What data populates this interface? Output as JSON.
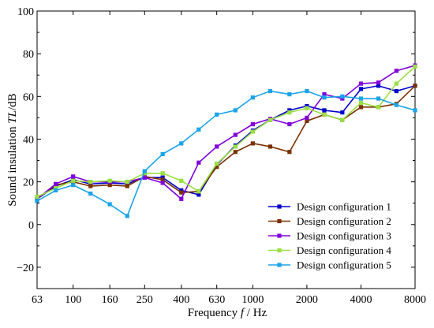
{
  "chart_data": {
    "type": "line",
    "xlabel_parts": [
      "Frequency ",
      "f",
      " / Hz"
    ],
    "ylabel_parts": [
      "Sound insulation ",
      "TL",
      "/dB"
    ],
    "x_scale": "log",
    "xlim": [
      63,
      8000
    ],
    "ylim": [
      -30,
      100
    ],
    "xticks": [
      63,
      100,
      160,
      250,
      400,
      630,
      1000,
      2000,
      4000,
      8000
    ],
    "yticks": [
      -20,
      0,
      20,
      40,
      60,
      80,
      100
    ],
    "grid": false,
    "legend_position": "bottom-right",
    "x": [
      63,
      80,
      100,
      125,
      160,
      200,
      250,
      315,
      400,
      500,
      630,
      800,
      1000,
      1250,
      1600,
      2000,
      2500,
      3150,
      4000,
      5000,
      6300,
      8000
    ],
    "series": [
      {
        "name": "Design configuration 1",
        "color": "#0000cc",
        "marker": "square",
        "values": [
          12,
          18,
          21,
          19,
          19.5,
          19,
          22,
          22,
          16,
          14,
          28,
          37,
          44,
          49,
          53.5,
          55.5,
          53.5,
          52.5,
          63.5,
          65,
          62.5,
          65
        ]
      },
      {
        "name": "Design configuration 2",
        "color": "#7b3000",
        "marker": "square",
        "values": [
          12,
          18.5,
          20,
          18,
          18.5,
          18,
          22.5,
          21,
          15,
          15.5,
          27,
          34,
          38,
          36.5,
          34,
          48.5,
          51.5,
          49,
          55,
          55,
          56.5,
          65
        ]
      },
      {
        "name": "Design configuration 3",
        "color": "#8000dd",
        "marker": "square",
        "values": [
          12,
          19,
          22.5,
          20,
          20,
          20,
          22,
          19.5,
          12,
          29,
          36.5,
          42,
          47,
          49.5,
          47,
          50,
          61,
          59,
          66,
          66.5,
          72,
          74.5
        ]
      },
      {
        "name": "Design configuration 4",
        "color": "#99e040",
        "marker": "square",
        "values": [
          13,
          17,
          20.5,
          20,
          20.5,
          20,
          24,
          24,
          20.5,
          15.5,
          28.5,
          36.5,
          43.5,
          49,
          52.5,
          54.5,
          51.5,
          49,
          57,
          55,
          66,
          74
        ]
      },
      {
        "name": "Design configuration 5",
        "color": "#1aa3e8",
        "marker": "square",
        "values": [
          11,
          16,
          18.5,
          14.5,
          9.5,
          4,
          25,
          33,
          38,
          44.5,
          51.5,
          53.5,
          59.5,
          62.5,
          61,
          62.5,
          59.5,
          60,
          59,
          59,
          56,
          53.5
        ]
      }
    ]
  }
}
